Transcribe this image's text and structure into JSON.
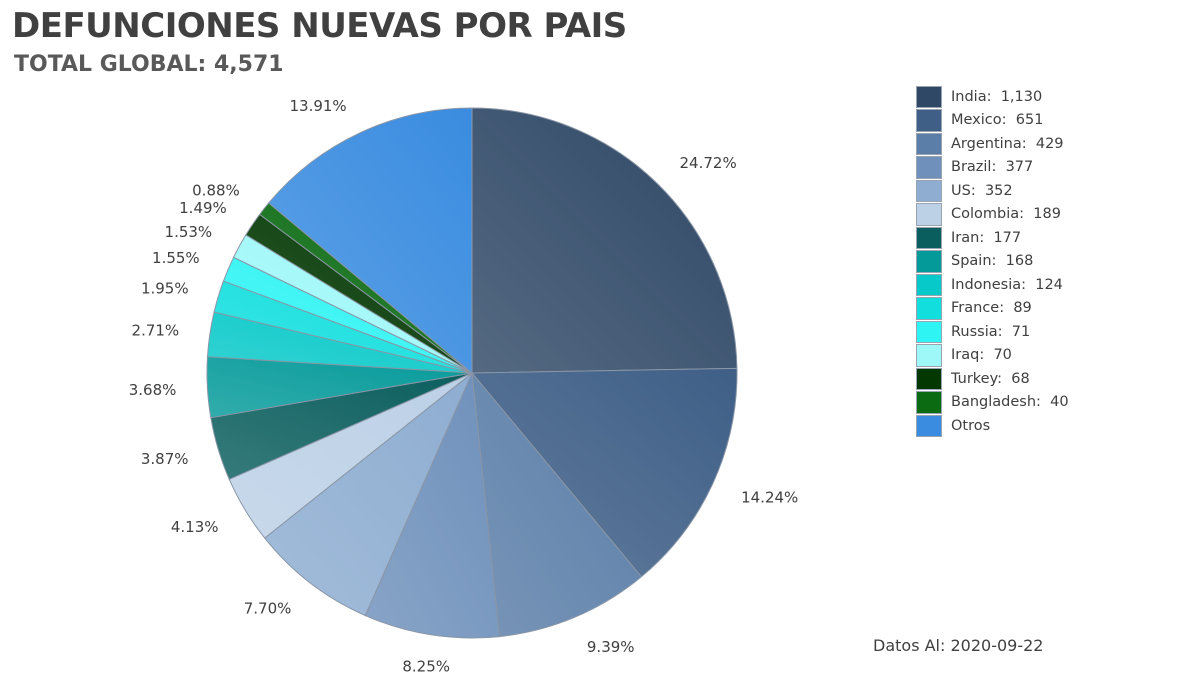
{
  "title": "DEFUNCIONES NUEVAS POR PAIS",
  "subtitle": "TOTAL GLOBAL: 4,571",
  "footnote": "Datos Al: 2020-09-22",
  "chart_data": {
    "type": "pie",
    "title": "DEFUNCIONES NUEVAS POR PAIS",
    "subtitle": "TOTAL GLOBAL: 4,571",
    "legend_position": "right",
    "slices": [
      {
        "label": "India",
        "value": 1130,
        "display": "1,130",
        "percent_label": "24.72%",
        "color": "#2f4866"
      },
      {
        "label": "Mexico",
        "value": 651,
        "display": "651",
        "percent_label": "14.24%",
        "color": "#3f5f87"
      },
      {
        "label": "Argentina",
        "value": 429,
        "display": "429",
        "percent_label": "9.39%",
        "color": "#5b7ea8"
      },
      {
        "label": "Brazil",
        "value": 377,
        "display": "377",
        "percent_label": "8.25%",
        "color": "#6e90bb"
      },
      {
        "label": "US",
        "value": 352,
        "display": "352",
        "percent_label": "7.70%",
        "color": "#8eadd1"
      },
      {
        "label": "Colombia",
        "value": 189,
        "display": "189",
        "percent_label": "4.13%",
        "color": "#bcd0e6"
      },
      {
        "label": "Iran",
        "value": 177,
        "display": "177",
        "percent_label": "3.87%",
        "color": "#0b5e5e"
      },
      {
        "label": "Spain",
        "value": 168,
        "display": "168",
        "percent_label": "3.68%",
        "color": "#059a9a"
      },
      {
        "label": "Indonesia",
        "value": 124,
        "display": "124",
        "percent_label": "2.71%",
        "color": "#08c9c9"
      },
      {
        "label": "France",
        "value": 89,
        "display": "89",
        "percent_label": "1.95%",
        "color": "#12dede"
      },
      {
        "label": "Russia",
        "value": 71,
        "display": "71",
        "percent_label": "1.55%",
        "color": "#2ff4f4"
      },
      {
        "label": "Iraq",
        "value": 70,
        "display": "70",
        "percent_label": "1.53%",
        "color": "#9ef8f8"
      },
      {
        "label": "Turkey",
        "value": 68,
        "display": "68",
        "percent_label": "1.49%",
        "color": "#033803"
      },
      {
        "label": "Bangladesh",
        "value": 40,
        "display": "40",
        "percent_label": "0.88%",
        "color": "#0a6b12"
      },
      {
        "label": "Otros",
        "value": 636,
        "display": "",
        "percent_label": "13.91%",
        "color": "#3a8ce0"
      }
    ]
  }
}
